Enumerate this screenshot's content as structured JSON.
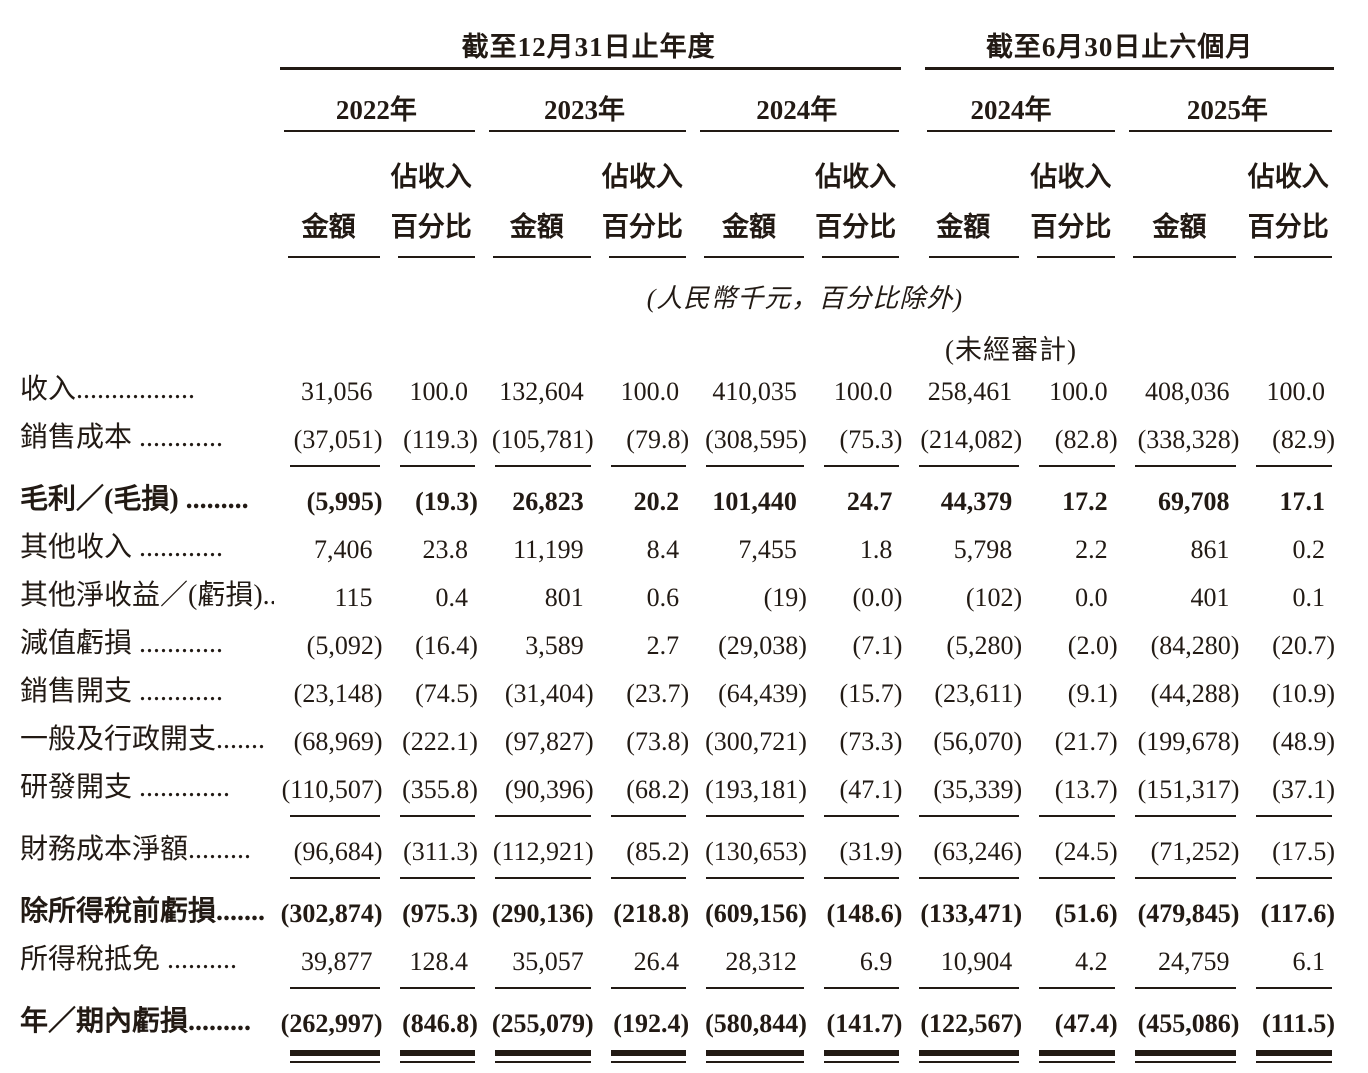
{
  "table": {
    "period_groups": [
      {
        "title": "截至12月31日止年度",
        "years": [
          "2022年",
          "2023年",
          "2024年"
        ]
      },
      {
        "title": "截至6月30日止六個月",
        "years": [
          "2024年",
          "2025年"
        ]
      }
    ],
    "col_headers": {
      "amount": "金額",
      "pct_line1": "佔收入",
      "pct_line2": "百分比"
    },
    "unit_note": "(人民幣千元，百分比除外)",
    "unaudited_note": "(未經審計)",
    "rows": [
      {
        "label": "收入.................",
        "bold": false,
        "rule": "none",
        "values": [
          "31,056",
          "100.0",
          "132,604",
          "100.0",
          "410,035",
          "100.0",
          "258,461",
          "100.0",
          "408,036",
          "100.0"
        ]
      },
      {
        "label": "銷售成本 ............",
        "bold": false,
        "rule": "single",
        "values": [
          "(37,051)",
          "(119.3)",
          "(105,781)",
          "(79.8)",
          "(308,595)",
          "(75.3)",
          "(214,082)",
          "(82.8)",
          "(338,328)",
          "(82.9)"
        ]
      },
      {
        "label": "毛利／(毛損) .........",
        "bold": true,
        "rule": "none",
        "values": [
          "(5,995)",
          "(19.3)",
          "26,823",
          "20.2",
          "101,440",
          "24.7",
          "44,379",
          "17.2",
          "69,708",
          "17.1"
        ]
      },
      {
        "label": "其他收入 ............",
        "bold": false,
        "rule": "none",
        "values": [
          "7,406",
          "23.8",
          "11,199",
          "8.4",
          "7,455",
          "1.8",
          "5,798",
          "2.2",
          "861",
          "0.2"
        ]
      },
      {
        "label": "其他淨收益／(虧損)...",
        "bold": false,
        "rule": "none",
        "values": [
          "115",
          "0.4",
          "801",
          "0.6",
          "(19)",
          "(0.0)",
          "(102)",
          "0.0",
          "401",
          "0.1"
        ]
      },
      {
        "label": "減值虧損 ............",
        "bold": false,
        "rule": "none",
        "values": [
          "(5,092)",
          "(16.4)",
          "3,589",
          "2.7",
          "(29,038)",
          "(7.1)",
          "(5,280)",
          "(2.0)",
          "(84,280)",
          "(20.7)"
        ]
      },
      {
        "label": "銷售開支 ............",
        "bold": false,
        "rule": "none",
        "values": [
          "(23,148)",
          "(74.5)",
          "(31,404)",
          "(23.7)",
          "(64,439)",
          "(15.7)",
          "(23,611)",
          "(9.1)",
          "(44,288)",
          "(10.9)"
        ]
      },
      {
        "label": "一般及行政開支.......",
        "bold": false,
        "rule": "none",
        "values": [
          "(68,969)",
          "(222.1)",
          "(97,827)",
          "(73.8)",
          "(300,721)",
          "(73.3)",
          "(56,070)",
          "(21.7)",
          "(199,678)",
          "(48.9)"
        ]
      },
      {
        "label": "研發開支 .............",
        "bold": false,
        "rule": "single",
        "values": [
          "(110,507)",
          "(355.8)",
          "(90,396)",
          "(68.2)",
          "(193,181)",
          "(47.1)",
          "(35,339)",
          "(13.7)",
          "(151,317)",
          "(37.1)"
        ]
      },
      {
        "label": "財務成本淨額.........",
        "bold": false,
        "rule": "single",
        "values": [
          "(96,684)",
          "(311.3)",
          "(112,921)",
          "(85.2)",
          "(130,653)",
          "(31.9)",
          "(63,246)",
          "(24.5)",
          "(71,252)",
          "(17.5)"
        ]
      },
      {
        "label": "除所得稅前虧損.......",
        "bold": true,
        "rule": "none",
        "values": [
          "(302,874)",
          "(975.3)",
          "(290,136)",
          "(218.8)",
          "(609,156)",
          "(148.6)",
          "(133,471)",
          "(51.6)",
          "(479,845)",
          "(117.6)"
        ]
      },
      {
        "label": "所得稅抵免 ..........",
        "bold": false,
        "rule": "single",
        "values": [
          "39,877",
          "128.4",
          "35,057",
          "26.4",
          "28,312",
          "6.9",
          "10,904",
          "4.2",
          "24,759",
          "6.1"
        ]
      },
      {
        "label": "年／期內虧損.........",
        "bold": true,
        "rule": "double",
        "values": [
          "(262,997)",
          "(846.8)",
          "(255,079)",
          "(192.4)",
          "(580,844)",
          "(141.7)",
          "(122,567)",
          "(47.4)",
          "(455,086)",
          "(111.5)"
        ]
      }
    ]
  }
}
